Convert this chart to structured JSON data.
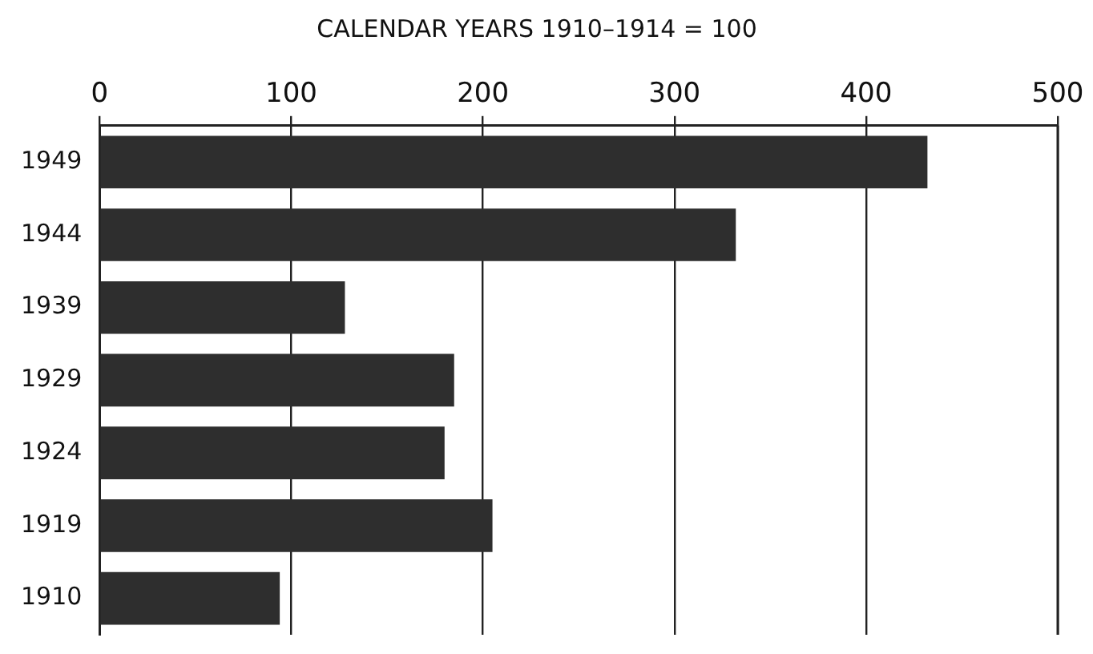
{
  "chart_data": {
    "type": "bar",
    "orientation": "horizontal",
    "title": "CALENDAR YEARS 1910–1914 = 100",
    "categories": [
      "1949",
      "1944",
      "1939",
      "1929",
      "1924",
      "1919",
      "1910"
    ],
    "values": [
      432,
      332,
      128,
      185,
      180,
      205,
      94
    ],
    "color": "#2e2e2e",
    "xlim": [
      0,
      500
    ],
    "xticks": [
      0,
      100,
      200,
      300,
      400,
      500
    ],
    "grid": "x",
    "legend": false
  }
}
